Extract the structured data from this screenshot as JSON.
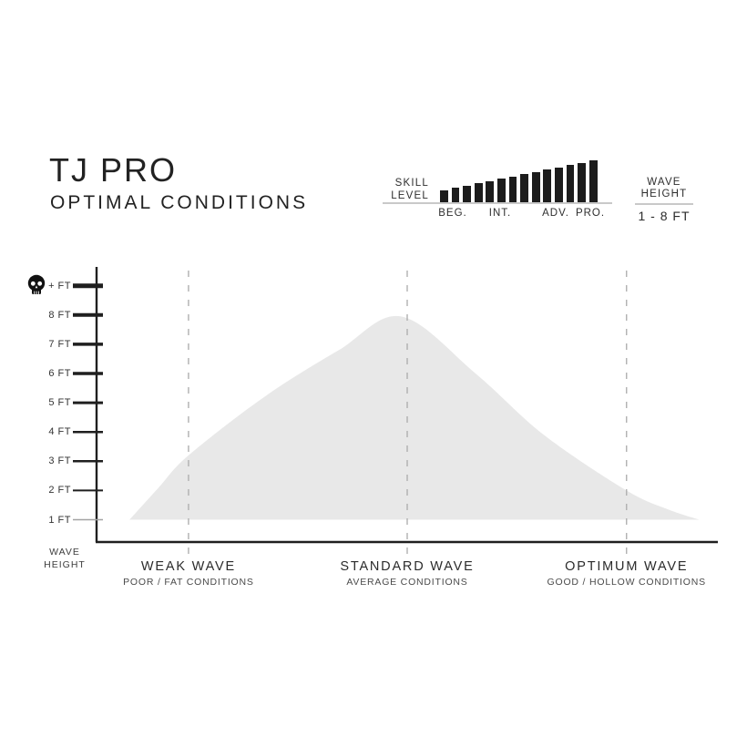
{
  "header": {
    "title": "TJ PRO",
    "subtitle": "OPTIMAL CONDITIONS"
  },
  "skill_panel": {
    "label_line1": "SKILL",
    "label_line2": "LEVEL",
    "levels": [
      "BEG.",
      "INT.",
      "ADV.",
      "PRO."
    ],
    "bar_count": 14
  },
  "wave_panel": {
    "label_line1": "WAVE",
    "label_line2": "HEIGHT",
    "range": "1 - 8 FT"
  },
  "chart_data": {
    "type": "area",
    "title": "TJ PRO OPTIMAL CONDITIONS",
    "ylabel_line1": "WAVE",
    "ylabel_line2": "HEIGHT",
    "ylim": [
      1,
      9
    ],
    "grid": "dashed vertical zone markers",
    "legend": "none",
    "y_ticks": [
      {
        "label": "+ FT",
        "ft": 9,
        "icon": "skull-icon"
      },
      {
        "label": "8 FT",
        "ft": 8
      },
      {
        "label": "7 FT",
        "ft": 7
      },
      {
        "label": "6 FT",
        "ft": 6
      },
      {
        "label": "5 FT",
        "ft": 5
      },
      {
        "label": "4 FT",
        "ft": 4
      },
      {
        "label": "3 FT",
        "ft": 3
      },
      {
        "label": "2 FT",
        "ft": 2
      },
      {
        "label": "1 FT",
        "ft": 1
      }
    ],
    "zones": [
      {
        "label": "WEAK WAVE",
        "sublabel": "POOR / FAT CONDITIONS",
        "position": 0.148
      },
      {
        "label": "STANDARD WAVE",
        "sublabel": "AVERAGE CONDITIONS",
        "position": 0.5
      },
      {
        "label": "OPTIMUM WAVE",
        "sublabel": "GOOD / HOLLOW CONDITIONS",
        "position": 0.853
      }
    ],
    "curve_points_ft": [
      {
        "x": 0.053,
        "ft": 1.0
      },
      {
        "x": 0.1,
        "ft": 2.1
      },
      {
        "x": 0.148,
        "ft": 3.2
      },
      {
        "x": 0.27,
        "ft": 5.2
      },
      {
        "x": 0.39,
        "ft": 6.8
      },
      {
        "x": 0.49,
        "ft": 7.95
      },
      {
        "x": 0.61,
        "ft": 6.0
      },
      {
        "x": 0.72,
        "ft": 3.9
      },
      {
        "x": 0.853,
        "ft": 2.0
      },
      {
        "x": 0.92,
        "ft": 1.35
      },
      {
        "x": 0.97,
        "ft": 1.0
      }
    ]
  },
  "colors": {
    "ink": "#1f1f1f",
    "curve_fill": "#e8e8e8",
    "dashed_line": "#b0b0b0",
    "divider": "#c9c9c9",
    "bar": "#1c1c1c"
  }
}
